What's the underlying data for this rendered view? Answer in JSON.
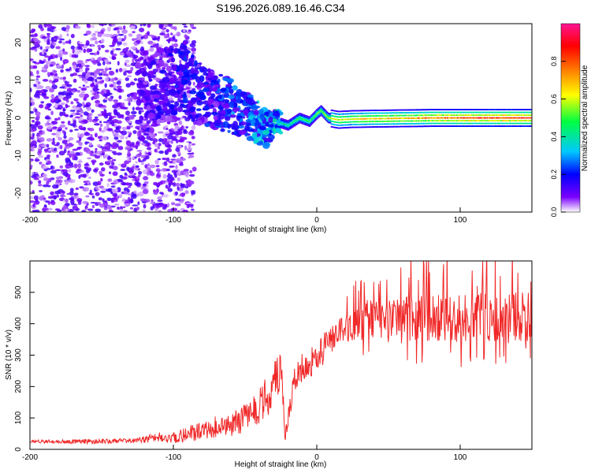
{
  "title": "S196.2026.089.16.46.C34",
  "chart_data": [
    {
      "type": "heatmap",
      "xlabel": "Height of straight line (km)",
      "ylabel": "Frequency (Hz)",
      "xlim": [
        -200,
        150
      ],
      "ylim": [
        -25,
        25
      ],
      "x_ticks": [
        -200,
        -100,
        0,
        100
      ],
      "y_ticks": [
        -20,
        -10,
        0,
        10,
        20
      ],
      "colorbar": {
        "label": "Normalized spectral amplitude",
        "range": [
          0.0,
          1.0
        ],
        "ticks": [
          0.0,
          0.2,
          0.4,
          0.6,
          0.8
        ],
        "tick_labels": [
          "0.0",
          "0.2",
          "0.4",
          "0.6",
          "0.8"
        ],
        "colors": [
          "#ffffff",
          "#7a00ff",
          "#0000ff",
          "#00c8ff",
          "#00ff40",
          "#ffff00",
          "#ff8000",
          "#ff0000",
          "#ff1493"
        ]
      },
      "ridge": {
        "x": [
          -125,
          -110,
          -100,
          -92,
          -85,
          -75,
          -60,
          -45,
          -35,
          -28,
          -20,
          -12,
          -5,
          0,
          3,
          8,
          15,
          25,
          40,
          60,
          80,
          100,
          120,
          150
        ],
        "y": [
          5,
          8,
          9,
          11,
          7,
          5,
          3,
          0,
          -3,
          -1,
          -2,
          0,
          -1,
          1,
          2,
          0,
          -0.5,
          -0.3,
          -0.2,
          -0.1,
          0,
          0,
          0,
          0
        ],
        "intensity": [
          0.12,
          0.15,
          0.17,
          0.2,
          0.18,
          0.2,
          0.25,
          0.3,
          0.33,
          0.4,
          0.45,
          0.5,
          0.5,
          0.55,
          0.55,
          0.6,
          0.62,
          0.65,
          0.7,
          0.72,
          0.78,
          0.82,
          0.84,
          0.86
        ]
      }
    },
    {
      "type": "line",
      "xlabel": "Height of straight line (km)",
      "ylabel": "SNR (10 * v/v)",
      "xlim": [
        -200,
        150
      ],
      "ylim": [
        0,
        600
      ],
      "x_ticks": [
        -200,
        -100,
        0,
        100
      ],
      "y_ticks": [
        0,
        100,
        200,
        300,
        400,
        500
      ],
      "series": [
        {
          "name": "SNR",
          "color": "#f02828",
          "x": [
            -200,
            -160,
            -130,
            -120,
            -110,
            -100,
            -90,
            -80,
            -70,
            -60,
            -50,
            -45,
            -40,
            -35,
            -30,
            -25,
            -22,
            -18,
            -15,
            -12,
            -8,
            -5,
            0,
            5,
            10,
            15,
            20,
            30,
            40,
            50,
            60,
            80,
            100,
            120,
            150
          ],
          "y": [
            25,
            25,
            27,
            32,
            40,
            38,
            48,
            60,
            72,
            80,
            100,
            115,
            135,
            170,
            210,
            250,
            40,
            160,
            230,
            250,
            260,
            270,
            300,
            320,
            345,
            365,
            385,
            410,
            420,
            425,
            420,
            420,
            418,
            420,
            420
          ],
          "band": [
            10,
            15,
            15,
            25,
            30,
            35,
            50,
            60,
            70,
            80,
            90,
            100,
            120,
            140,
            150,
            160,
            30,
            80,
            90,
            100,
            100,
            100,
            100,
            100,
            100,
            100,
            100,
            110,
            130,
            140,
            150,
            150,
            160,
            160,
            160
          ]
        }
      ]
    }
  ]
}
